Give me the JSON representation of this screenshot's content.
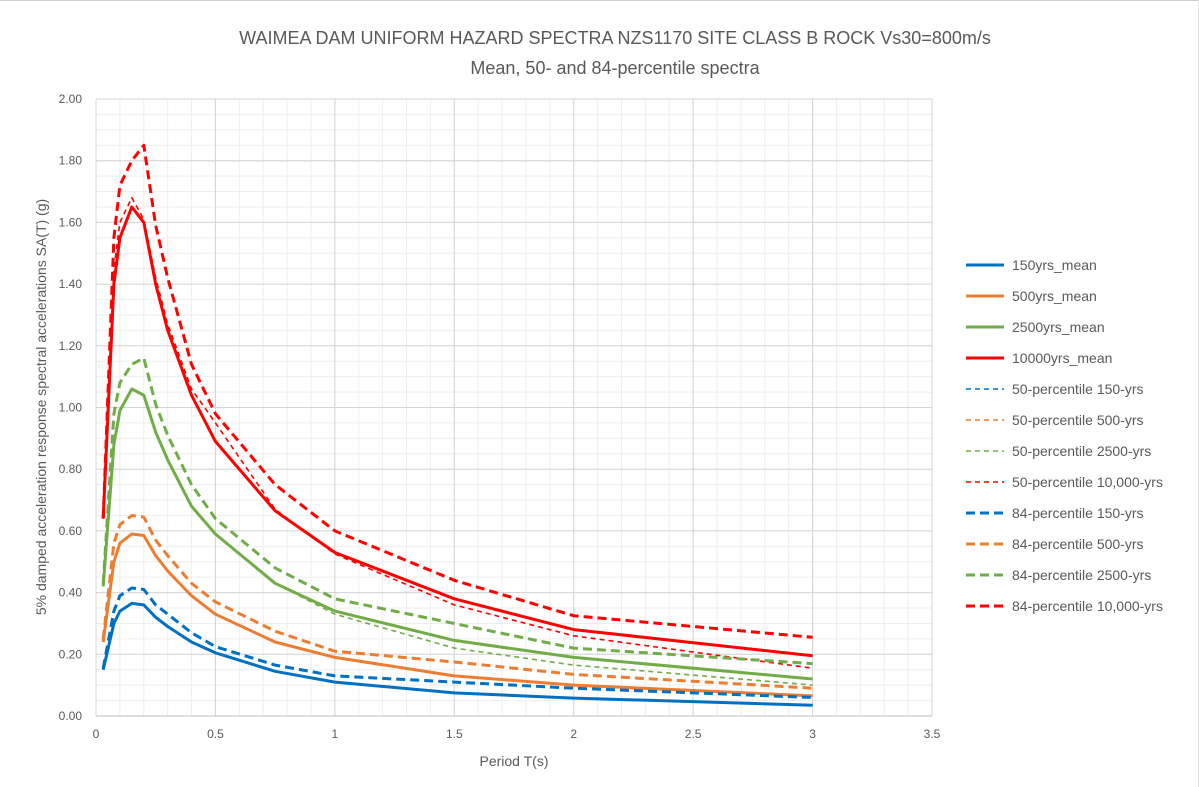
{
  "chart_data": {
    "type": "line",
    "title": "WAIMEA DAM UNIFORM HAZARD SPECTRA NZS1170 SITE CLASS B ROCK Vs30=800m/s",
    "subtitle": "Mean, 50- and 84-percentile spectra",
    "xlabel": "Period T(s)",
    "ylabel": "5% damped acceleration response spectral accelerations SA(T) (g)",
    "xlim": [
      0,
      3.5
    ],
    "ylim": [
      0,
      2.0
    ],
    "x_ticks": [
      "0",
      "0.5",
      "1",
      "1.5",
      "2",
      "2.5",
      "3",
      "3.5"
    ],
    "y_ticks": [
      "0.00",
      "0.20",
      "0.40",
      "0.60",
      "0.80",
      "1.00",
      "1.20",
      "1.40",
      "1.60",
      "1.80",
      "2.00"
    ],
    "grid": true,
    "legend_position": "right",
    "x": [
      0.03,
      0.075,
      0.1,
      0.15,
      0.2,
      0.25,
      0.3,
      0.4,
      0.5,
      0.75,
      1.0,
      1.5,
      2.0,
      3.0
    ],
    "series": [
      {
        "name": " 150yrs_mean",
        "color": "#0070C0",
        "style": "solid",
        "width": 3,
        "values": [
          0.15,
          0.3,
          0.34,
          0.365,
          0.36,
          0.32,
          0.29,
          0.24,
          0.205,
          0.145,
          0.11,
          0.075,
          0.058,
          0.035
        ]
      },
      {
        "name": " 500yrs_mean",
        "color": "#ED7D31",
        "style": "solid",
        "width": 3,
        "values": [
          0.24,
          0.5,
          0.56,
          0.59,
          0.585,
          0.52,
          0.47,
          0.39,
          0.33,
          0.24,
          0.19,
          0.13,
          0.1,
          0.065
        ]
      },
      {
        "name": "2500yrs_mean",
        "color": "#70AD47",
        "style": "solid",
        "width": 3,
        "values": [
          0.42,
          0.88,
          0.99,
          1.06,
          1.04,
          0.92,
          0.83,
          0.68,
          0.59,
          0.43,
          0.34,
          0.245,
          0.19,
          0.12
        ]
      },
      {
        "name": "10000yrs_mean",
        "color": "#FF0000",
        "style": "solid",
        "width": 3,
        "values": [
          0.64,
          1.4,
          1.55,
          1.65,
          1.6,
          1.4,
          1.25,
          1.04,
          0.89,
          0.665,
          0.53,
          0.38,
          0.28,
          0.195
        ]
      },
      {
        "name": "50-percentile 150-yrs",
        "color": "#0070C0",
        "style": "dashed",
        "width": 1.6,
        "values": [
          0.15,
          0.3,
          0.34,
          0.365,
          0.36,
          0.32,
          0.29,
          0.24,
          0.205,
          0.145,
          0.11,
          0.075,
          0.058,
          0.035
        ]
      },
      {
        "name": "50-percentile 500-yrs",
        "color": "#ED7D31",
        "style": "dashed",
        "width": 1.6,
        "values": [
          0.24,
          0.5,
          0.56,
          0.59,
          0.585,
          0.52,
          0.47,
          0.39,
          0.33,
          0.24,
          0.19,
          0.13,
          0.1,
          0.065
        ]
      },
      {
        "name": "50-percentile 2500-yrs",
        "color": "#70AD47",
        "style": "dashed",
        "width": 1.6,
        "values": [
          0.42,
          0.88,
          0.99,
          1.06,
          1.04,
          0.92,
          0.83,
          0.68,
          0.59,
          0.43,
          0.33,
          0.22,
          0.165,
          0.1
        ]
      },
      {
        "name": "50-percentile 10,000-yrs",
        "color": "#FF0000",
        "style": "dashed",
        "width": 1.6,
        "values": [
          0.64,
          1.45,
          1.6,
          1.68,
          1.61,
          1.42,
          1.27,
          1.06,
          0.95,
          0.67,
          0.525,
          0.36,
          0.26,
          0.155
        ]
      },
      {
        "name": "84-percentile 150-yrs",
        "color": "#0070C0",
        "style": "dashed",
        "width": 3,
        "values": [
          0.155,
          0.34,
          0.39,
          0.415,
          0.41,
          0.36,
          0.33,
          0.27,
          0.225,
          0.165,
          0.13,
          0.11,
          0.09,
          0.06
        ]
      },
      {
        "name": "84-percentile 500-yrs",
        "color": "#ED7D31",
        "style": "dashed",
        "width": 3,
        "values": [
          0.25,
          0.56,
          0.62,
          0.65,
          0.645,
          0.57,
          0.52,
          0.43,
          0.37,
          0.275,
          0.21,
          0.175,
          0.135,
          0.09
        ]
      },
      {
        "name": "84-percentile 2500-yrs",
        "color": "#70AD47",
        "style": "dashed",
        "width": 3,
        "values": [
          0.43,
          0.98,
          1.08,
          1.14,
          1.16,
          1.01,
          0.91,
          0.75,
          0.64,
          0.48,
          0.38,
          0.3,
          0.22,
          0.17
        ]
      },
      {
        "name": "84-percentile 10,000-yrs",
        "color": "#FF0000",
        "style": "dashed",
        "width": 3,
        "values": [
          0.64,
          1.55,
          1.72,
          1.8,
          1.85,
          1.59,
          1.42,
          1.14,
          0.98,
          0.75,
          0.6,
          0.44,
          0.325,
          0.255
        ]
      }
    ]
  }
}
